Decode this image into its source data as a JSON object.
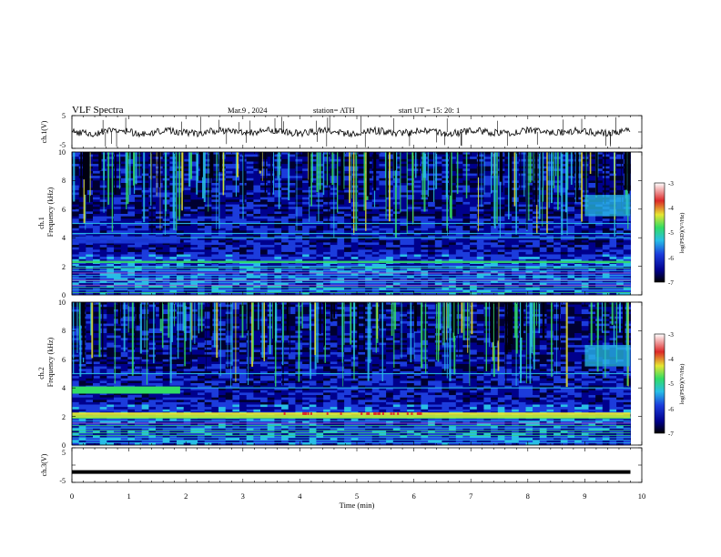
{
  "header": {
    "title": "VLF  Spectra",
    "date": "Mar.9  , 2024",
    "station": "station= ATH",
    "start": "start  UT  =    15: 20: 1"
  },
  "chart_data": [
    {
      "type": "line",
      "panel": "ch1-waveform",
      "ylabel": "ch.1(V)",
      "ylim": [
        -5,
        5
      ],
      "yticks": [
        "5",
        "-5"
      ],
      "series": [
        {
          "approx_level": 0,
          "spikes": true
        }
      ]
    },
    {
      "type": "heatmap",
      "panel": "ch1-spectrogram",
      "ylabel_top": "ch.1",
      "ylabel": "Frequency  (kHz)",
      "ylim": [
        0,
        10
      ],
      "yticks": [
        "0",
        "2",
        "4",
        "6",
        "8",
        "10"
      ],
      "colorbar": {
        "label": "log(PSD)(V²/Hz)",
        "range": [
          -7,
          -3
        ],
        "ticks": [
          "-3",
          "-4",
          "-5",
          "-6",
          "-7"
        ]
      },
      "bands_khz": [
        4.0,
        4.3,
        5.0,
        2.3,
        2.0,
        1.0
      ]
    },
    {
      "type": "heatmap",
      "panel": "ch2-spectrogram",
      "ylabel_top": "ch.2",
      "ylabel": "Frequency  (kHz)",
      "ylim": [
        0,
        10
      ],
      "yticks": [
        "0",
        "2",
        "4",
        "6",
        "8",
        "10"
      ],
      "colorbar": {
        "label": "log(PSD)(V²/Hz)",
        "range": [
          -7,
          -3
        ],
        "ticks": [
          "-3",
          "-4",
          "-5",
          "-6",
          "-7"
        ]
      },
      "bands_khz": [
        4.0,
        2.2,
        2.0,
        5.0
      ]
    },
    {
      "type": "line",
      "panel": "ch3-waveform",
      "ylabel": "ch.3(V)",
      "ylim": [
        -5,
        5
      ],
      "yticks": [
        "5",
        "-5"
      ],
      "series": [
        {
          "approx_level": -2
        }
      ]
    }
  ],
  "xaxis": {
    "label": "Time  (min)",
    "range": [
      0,
      10
    ],
    "ticks": [
      "0",
      "1",
      "2",
      "3",
      "4",
      "5",
      "6",
      "7",
      "8",
      "9",
      "10"
    ],
    "data_end": 9.8
  },
  "colors": {
    "deep": "#000030",
    "dark_blue": "#00008c",
    "blue": "#1c3cdc",
    "cyan": "#28bee6",
    "green": "#32dc64",
    "yellow": "#e6e632",
    "red": "#dc2828"
  }
}
